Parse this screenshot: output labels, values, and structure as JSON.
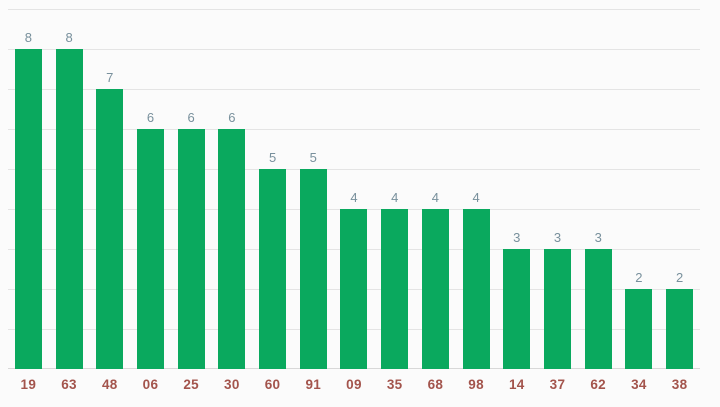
{
  "chart_data": {
    "type": "bar",
    "title": "",
    "xlabel": "",
    "ylabel": "",
    "categories": [
      "19",
      "63",
      "48",
      "06",
      "25",
      "30",
      "60",
      "91",
      "09",
      "35",
      "68",
      "98",
      "14",
      "37",
      "62",
      "34",
      "38"
    ],
    "values": [
      8,
      8,
      7,
      6,
      6,
      6,
      5,
      5,
      4,
      4,
      4,
      4,
      3,
      3,
      3,
      2,
      2
    ],
    "value_labels": [
      "8",
      "8",
      "7",
      "6",
      "6",
      "6",
      "5",
      "5",
      "4",
      "4",
      "4",
      "4",
      "3",
      "3",
      "3",
      "2",
      "2"
    ],
    "ylim": [
      0,
      9
    ],
    "grid": true,
    "legend": false,
    "colors": {
      "bar": "#0aa95e",
      "value_label": "#78909c",
      "category_label": "#a3544c",
      "gridline": "#e4e4e4",
      "baseline": "#d8d8d8",
      "background": "#fbfbfb"
    }
  }
}
